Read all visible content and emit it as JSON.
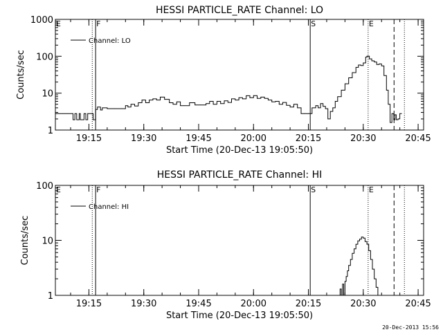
{
  "footer_timestamp": "20-Dec-2013 15:56",
  "chart_data": [
    {
      "type": "line",
      "title": "HESSI PARTICLE_RATE Channel: LO",
      "xlabel": "Start Time (20-Dec-13 19:05:50)",
      "ylabel": "Counts/sec",
      "yscale": "log",
      "ylim": [
        1,
        1000
      ],
      "xlim": [
        "19:05:50",
        "20:46:30"
      ],
      "x_ticks": [
        "19:15",
        "19:30",
        "19:45",
        "20:00",
        "20:15",
        "20:30",
        "20:45"
      ],
      "y_ticks": [
        "1",
        "10",
        "100",
        "1000"
      ],
      "legend": {
        "position": "top-left",
        "label": "Channel: LO"
      },
      "markers": [
        {
          "label": "E",
          "time": "19:05:50",
          "style": "none"
        },
        {
          "label": "",
          "time": "19:15:55",
          "style": "dotted"
        },
        {
          "label": "F",
          "time": "19:16:50",
          "style": "solid"
        },
        {
          "label": "S",
          "time": "20:15:30",
          "style": "solid"
        },
        {
          "label": "E",
          "time": "20:31:20",
          "style": "dotted"
        },
        {
          "label": "",
          "time": "20:38:25",
          "style": "dashed"
        },
        {
          "label": "",
          "time": "20:41:15",
          "style": "dotted"
        }
      ],
      "series": [
        {
          "x": [
            "19:05:50",
            "19:06:40",
            "19:10:20",
            "19:10:40",
            "19:11:10",
            "19:11:40",
            "19:12:20",
            "19:12:40",
            "19:13:20",
            "19:13:40",
            "19:14:10",
            "19:14:40",
            "19:15:30",
            "19:16:10",
            "19:16:50",
            "19:17:20",
            "19:18:10",
            "19:18:40",
            "19:20:00",
            "19:22:00",
            "19:24:00",
            "19:25:00",
            "19:25:40",
            "19:26:30",
            "19:27:30",
            "19:28:30",
            "19:29:30",
            "19:30:30",
            "19:31:30",
            "19:32:30",
            "19:33:30",
            "19:34:30",
            "19:35:40",
            "19:37:00",
            "19:38:00",
            "19:39:00",
            "19:40:00",
            "19:41:00",
            "19:42:30",
            "19:44:00",
            "19:45:30",
            "19:47:00",
            "19:48:00",
            "19:49:00",
            "19:50:00",
            "19:51:00",
            "19:52:00",
            "19:53:00",
            "19:54:00",
            "19:55:00",
            "19:56:00",
            "19:57:00",
            "19:58:00",
            "19:59:00",
            "20:00:00",
            "20:01:00",
            "20:02:00",
            "20:03:00",
            "20:04:00",
            "20:05:00",
            "20:06:00",
            "20:07:00",
            "20:08:00",
            "20:09:00",
            "20:10:00",
            "20:11:00",
            "20:12:00",
            "20:13:00",
            "20:14:00",
            "20:15:00",
            "20:16:00",
            "20:17:00",
            "20:17:40",
            "20:18:20",
            "20:19:00",
            "20:19:40",
            "20:20:20",
            "20:21:00",
            "20:21:40",
            "20:22:20",
            "20:23:00",
            "20:24:00",
            "20:25:00",
            "20:26:00",
            "20:27:00",
            "20:28:00",
            "20:28:40",
            "20:29:20",
            "20:30:00",
            "20:30:40",
            "20:31:00",
            "20:31:40",
            "20:32:20",
            "20:33:00",
            "20:33:40",
            "20:34:20",
            "20:35:00",
            "20:35:40",
            "20:36:20",
            "20:36:50",
            "20:37:20",
            "20:37:50",
            "20:38:20",
            "20:38:40",
            "20:39:00",
            "20:39:30",
            "20:40:00",
            "20:40:30"
          ],
          "y": [
            2.8,
            2.8,
            2.8,
            1.9,
            2.8,
            1.9,
            2.8,
            1.9,
            1.9,
            2.8,
            1.9,
            2.8,
            2.8,
            1.9,
            3.6,
            4.2,
            3.5,
            4.0,
            3.8,
            3.8,
            3.8,
            4.6,
            4.2,
            5.0,
            4.5,
            5.5,
            6.5,
            5.5,
            6.5,
            7.0,
            6.5,
            7.8,
            6.8,
            5.5,
            5.0,
            5.8,
            4.6,
            4.6,
            5.5,
            4.8,
            4.8,
            5.2,
            6.0,
            5.0,
            6.0,
            5.2,
            6.2,
            5.6,
            7.0,
            6.5,
            7.5,
            7.0,
            8.5,
            7.5,
            8.6,
            7.2,
            7.8,
            7.2,
            6.5,
            5.8,
            6.0,
            5.0,
            5.6,
            4.7,
            4.2,
            5.0,
            4.0,
            2.8,
            2.8,
            2.8,
            4.0,
            4.6,
            4.0,
            5.2,
            4.4,
            3.8,
            2.0,
            3.2,
            4.0,
            6.0,
            8.0,
            12,
            18,
            26,
            36,
            50,
            58,
            56,
            66,
            95,
            100,
            85,
            75,
            70,
            60,
            62,
            55,
            30,
            12,
            5,
            1.6,
            2.8,
            1.9,
            2.6,
            1.9,
            2.0,
            2.8,
            2.8
          ]
        }
      ]
    },
    {
      "type": "line",
      "title": "HESSI PARTICLE_RATE Channel: HI",
      "xlabel": "Start Time (20-Dec-13 19:05:50)",
      "ylabel": "Counts/sec",
      "yscale": "log",
      "ylim": [
        1,
        100
      ],
      "xlim": [
        "19:05:50",
        "20:46:30"
      ],
      "x_ticks": [
        "19:15",
        "19:30",
        "19:45",
        "20:00",
        "20:15",
        "20:30",
        "20:45"
      ],
      "y_ticks": [
        "1",
        "10",
        "100"
      ],
      "legend": {
        "position": "top-left",
        "label": "Channel: HI"
      },
      "markers": [
        {
          "label": "E",
          "time": "19:05:50",
          "style": "none"
        },
        {
          "label": "",
          "time": "19:15:55",
          "style": "dotted"
        },
        {
          "label": "F",
          "time": "19:16:50",
          "style": "solid"
        },
        {
          "label": "S",
          "time": "20:15:30",
          "style": "solid"
        },
        {
          "label": "E",
          "time": "20:31:20",
          "style": "dotted"
        },
        {
          "label": "",
          "time": "20:38:25",
          "style": "dashed"
        },
        {
          "label": "",
          "time": "20:41:15",
          "style": "dotted"
        }
      ],
      "series": [
        {
          "x": [
            "20:23:10",
            "20:23:40",
            "20:24:00",
            "20:24:20",
            "20:24:40",
            "20:25:00",
            "20:25:20",
            "20:25:40",
            "20:26:00",
            "20:26:30",
            "20:27:00",
            "20:27:30",
            "20:28:00",
            "20:28:30",
            "20:29:00",
            "20:29:30",
            "20:30:00",
            "20:30:30",
            "20:31:00",
            "20:31:30",
            "20:32:00",
            "20:32:30",
            "20:33:00",
            "20:33:30",
            "20:34:00"
          ],
          "y": [
            1.0,
            1.3,
            1.0,
            1.6,
            1.0,
            1.8,
            2.2,
            2.8,
            3.5,
            4.5,
            5.8,
            7.0,
            8.5,
            9.8,
            10.5,
            11.5,
            11.0,
            9.5,
            8.5,
            6.5,
            4.5,
            3.0,
            2.0,
            1.4,
            1.0
          ]
        }
      ]
    }
  ]
}
